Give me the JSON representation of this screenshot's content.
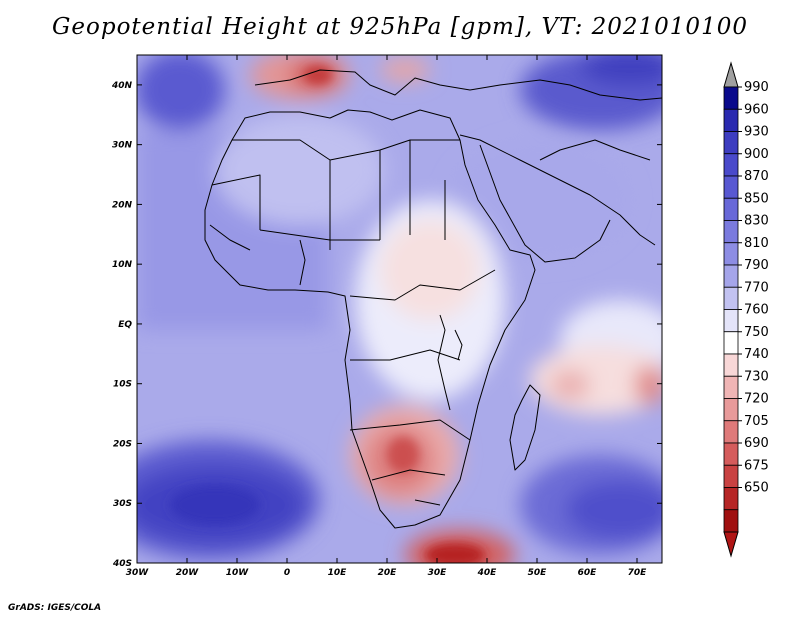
{
  "title": "Geopotential Height at 925hPa [gpm], VT: 2021010100",
  "footer": "GrADS: IGES/COLA",
  "map": {
    "variable": "Geopotential Height",
    "level": "925hPa",
    "units": "gpm",
    "valid_time": "2021010100",
    "lon_range": [
      -30,
      75
    ],
    "lat_range": [
      -40,
      45
    ],
    "lon_ticks": [
      {
        "value": -30,
        "label": "30W"
      },
      {
        "value": -20,
        "label": "20W"
      },
      {
        "value": -10,
        "label": "10W"
      },
      {
        "value": 0,
        "label": "0"
      },
      {
        "value": 10,
        "label": "10E"
      },
      {
        "value": 20,
        "label": "20E"
      },
      {
        "value": 30,
        "label": "30E"
      },
      {
        "value": 40,
        "label": "40E"
      },
      {
        "value": 50,
        "label": "50E"
      },
      {
        "value": 60,
        "label": "60E"
      },
      {
        "value": 70,
        "label": "70E"
      }
    ],
    "lat_ticks": [
      {
        "value": 40,
        "label": "40N"
      },
      {
        "value": 30,
        "label": "30N"
      },
      {
        "value": 20,
        "label": "20N"
      },
      {
        "value": 10,
        "label": "10N"
      },
      {
        "value": 0,
        "label": "EQ"
      },
      {
        "value": -10,
        "label": "10S"
      },
      {
        "value": -20,
        "label": "20S"
      },
      {
        "value": -30,
        "label": "30S"
      },
      {
        "value": -40,
        "label": "40S"
      }
    ]
  },
  "colorbar": {
    "levels": [
      "990",
      "960",
      "930",
      "900",
      "870",
      "850",
      "830",
      "810",
      "790",
      "770",
      "760",
      "750",
      "740",
      "730",
      "720",
      "705",
      "690",
      "675",
      "650"
    ],
    "colors": [
      "#0a0a8c",
      "#2a2ab0",
      "#3d3dc0",
      "#4a4acb",
      "#5858d2",
      "#6868d8",
      "#7a7ade",
      "#8d8de4",
      "#a5a5ea",
      "#c2c2f1",
      "#e4e4f9",
      "#ffffff",
      "#f8d7d7",
      "#f0b5b5",
      "#e89a9a",
      "#df7a7a",
      "#d55c5c",
      "#c94242",
      "#b62626",
      "#a01010"
    ],
    "top_arrow_color": "#a0a0a0",
    "bottom_arrow_color": "#b01515"
  }
}
